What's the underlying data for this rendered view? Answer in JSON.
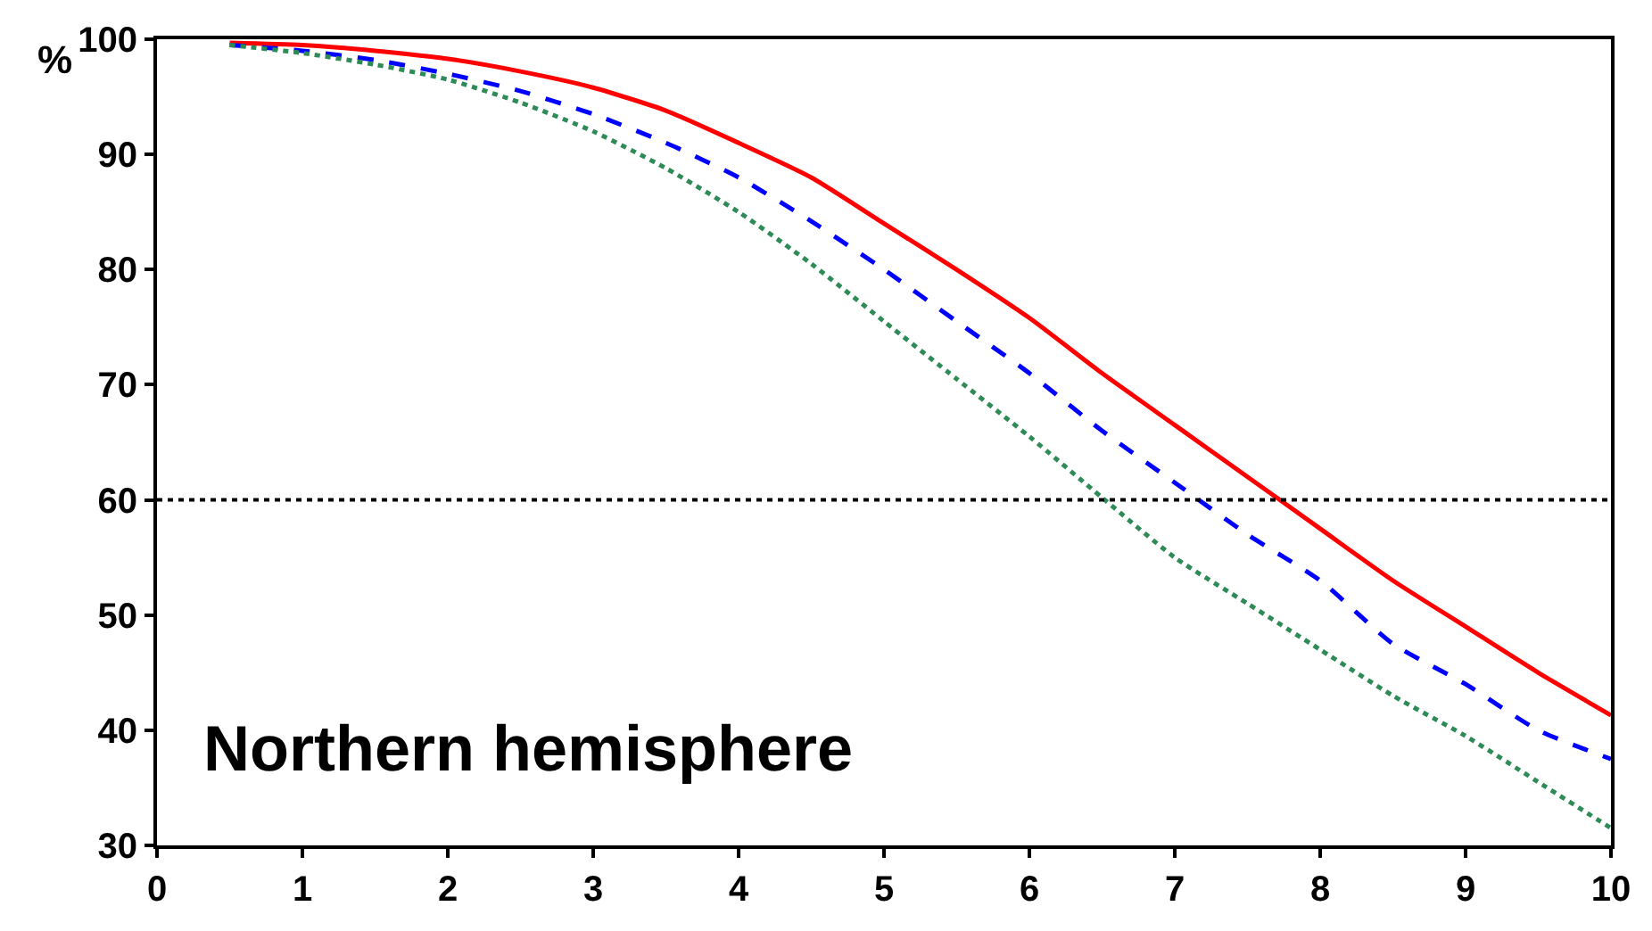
{
  "chart_data": {
    "type": "line",
    "ylabel": "%",
    "annotations": [
      "Northern hemisphere"
    ],
    "x": [
      0.5,
      1,
      1.5,
      2,
      2.5,
      3,
      3.5,
      4,
      4.5,
      5,
      5.5,
      6,
      6.5,
      7,
      7.5,
      8,
      8.5,
      9,
      9.5,
      10
    ],
    "series": [
      {
        "color": "#ff0000",
        "line_style": "solid",
        "values": [
          99.7,
          99.5,
          99.0,
          98.3,
          97.2,
          95.8,
          93.8,
          91.0,
          88.0,
          84.0,
          80.0,
          75.8,
          71.0,
          66.5,
          62.0,
          57.5,
          53.0,
          49.0,
          45.0,
          41.3
        ]
      },
      {
        "color": "#0000ff",
        "line_style": "dashed",
        "values": [
          99.5,
          99.0,
          98.2,
          97.0,
          95.5,
          93.5,
          91.0,
          88.0,
          84.2,
          80.0,
          75.5,
          71.0,
          66.0,
          61.5,
          57.0,
          53.0,
          47.5,
          44.0,
          40.0,
          37.5
        ]
      },
      {
        "color": "#2e8b57",
        "line_style": "dotted",
        "values": [
          99.5,
          98.8,
          97.8,
          96.5,
          94.5,
          92.0,
          88.8,
          85.0,
          80.5,
          75.5,
          70.5,
          65.5,
          60.2,
          55.0,
          51.0,
          47.0,
          43.0,
          39.5,
          35.5,
          31.5
        ]
      }
    ],
    "ref_lines": [
      {
        "axis": "y",
        "value": 60,
        "color": "#000000",
        "line_style": "dotted"
      }
    ],
    "xlim": [
      0,
      10
    ],
    "xticks": [
      0,
      1,
      2,
      3,
      4,
      5,
      6,
      7,
      8,
      9,
      10
    ],
    "ylim": [
      30,
      100
    ],
    "yticks": [
      30,
      40,
      50,
      60,
      70,
      80,
      90,
      100
    ]
  }
}
